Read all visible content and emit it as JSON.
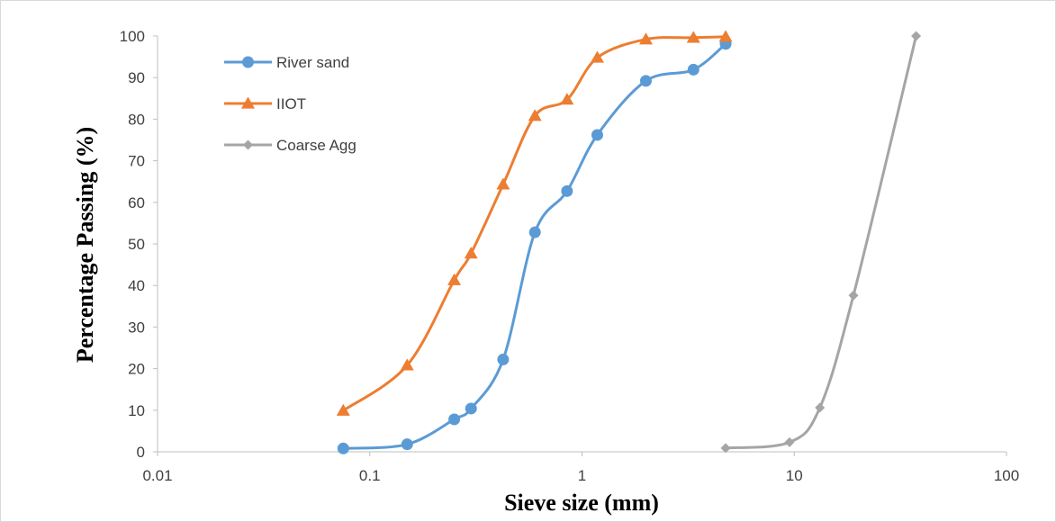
{
  "chart_data": {
    "type": "line",
    "title": "",
    "xlabel": "Sieve size (mm)",
    "ylabel": "Percentage Passing (%)",
    "x_scale": "log",
    "xlim": [
      0.01,
      100
    ],
    "ylim": [
      0,
      100
    ],
    "x_tick_labels": [
      "0.01",
      "0.1",
      "1",
      "10",
      "100"
    ],
    "x_tick_values": [
      0.01,
      0.1,
      1,
      10,
      100
    ],
    "y_tick_labels": [
      "0",
      "10",
      "20",
      "30",
      "40",
      "50",
      "60",
      "70",
      "80",
      "90",
      "100"
    ],
    "y_tick_values": [
      0,
      10,
      20,
      30,
      40,
      50,
      60,
      70,
      80,
      90,
      100
    ],
    "grid": false,
    "legend": "top-left",
    "series": [
      {
        "name": "River sand",
        "color": "#5b9bd5",
        "marker": "circle",
        "points": [
          [
            0.075,
            0.8
          ],
          [
            0.15,
            1.8
          ],
          [
            0.25,
            7.8
          ],
          [
            0.3,
            10.4
          ],
          [
            0.425,
            22.2
          ],
          [
            0.6,
            52.8
          ],
          [
            0.85,
            62.7
          ],
          [
            1.18,
            76.2
          ],
          [
            2.0,
            89.2
          ],
          [
            3.35,
            91.9
          ],
          [
            4.75,
            98.1
          ]
        ]
      },
      {
        "name": "IIOT",
        "color": "#ed7d31",
        "marker": "triangle",
        "points": [
          [
            0.075,
            9.9
          ],
          [
            0.15,
            20.8
          ],
          [
            0.25,
            41.3
          ],
          [
            0.3,
            47.7
          ],
          [
            0.425,
            64.3
          ],
          [
            0.6,
            80.8
          ],
          [
            0.85,
            84.7
          ],
          [
            1.18,
            94.8
          ],
          [
            2.0,
            99.2
          ],
          [
            3.35,
            99.6
          ],
          [
            4.75,
            99.8
          ]
        ]
      },
      {
        "name": "Coarse Agg",
        "color": "#a5a5a5",
        "marker": "diamond",
        "points": [
          [
            4.75,
            0.9
          ],
          [
            9.5,
            2.3
          ],
          [
            13.2,
            10.6
          ],
          [
            19.0,
            37.6
          ],
          [
            37.5,
            100
          ]
        ]
      }
    ]
  }
}
